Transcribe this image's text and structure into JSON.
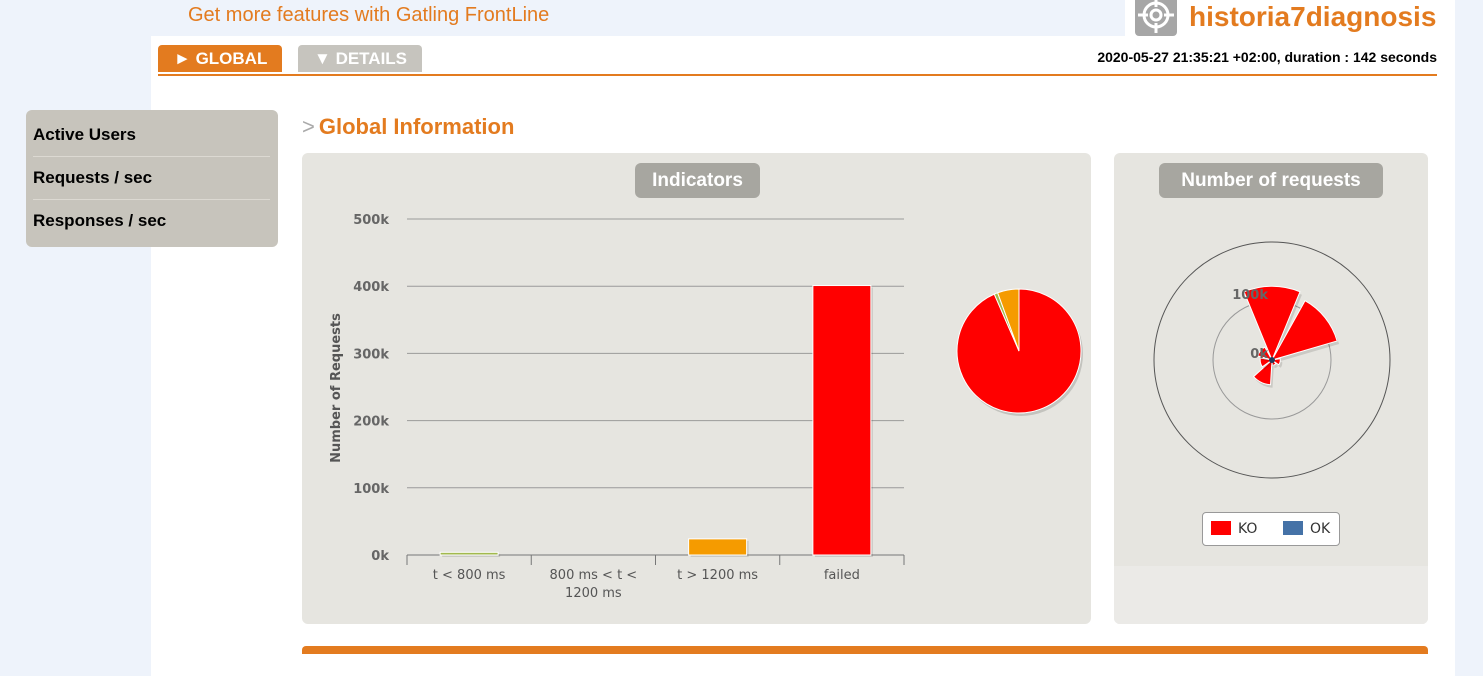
{
  "promo": {
    "text": "Get more features with Gatling FrontLine"
  },
  "brand": {
    "name": "historia7diagnosis",
    "icon": "target-icon"
  },
  "tabs": [
    {
      "label": "GLOBAL",
      "icon": "caret-right-icon",
      "active": true
    },
    {
      "label": "DETAILS",
      "icon": "caret-down-icon",
      "active": false
    }
  ],
  "run_info": "2020-05-27 21:35:21 +02:00, duration : 142 seconds",
  "menu": [
    {
      "label": "Active Users"
    },
    {
      "label": "Requests / sec"
    },
    {
      "label": "Responses / sec"
    }
  ],
  "section": {
    "prefix": ">",
    "title": "Global Information"
  },
  "colors": {
    "accent": "#e37b1f",
    "ok_green": "#a2b94e",
    "warn_orange": "#f59b00",
    "ko_red": "#ff0000",
    "ok_blue": "#4572a7"
  },
  "chart_data": [
    {
      "type": "bar",
      "title": "Indicators",
      "ylabel": "Number of Requests",
      "categories": [
        "t < 800 ms",
        "800 ms < t < 1200 ms",
        "t > 1200 ms",
        "failed"
      ],
      "values": [
        4000,
        0,
        24000,
        401000
      ],
      "bar_colors": [
        "#a2b94e",
        "#f2b600",
        "#f59b00",
        "#ff0000"
      ],
      "ylim": [
        0,
        500000
      ],
      "yticks": [
        "0k",
        "100k",
        "200k",
        "300k",
        "400k",
        "500k"
      ],
      "grid": true
    },
    {
      "type": "pie",
      "slices": [
        {
          "label": "failed",
          "value": 401000,
          "color": "#ff0000"
        },
        {
          "label": "t < 800 ms",
          "value": 4000,
          "color": "#a2b94e"
        },
        {
          "label": "t > 1200 ms",
          "value": 24000,
          "color": "#f59b00"
        }
      ]
    },
    {
      "type": "polar",
      "title": "Number of requests",
      "radial_ticks": [
        "0k",
        "100k"
      ],
      "wedges": [
        {
          "value": 125000,
          "color": "#ff0000"
        },
        {
          "value": 115000,
          "color": "#ff0000"
        },
        {
          "value": 14000,
          "color": "#ff0000"
        },
        {
          "value": 9000,
          "color": "#ff0000"
        },
        {
          "value": 42000,
          "color": "#ff0000"
        },
        {
          "value": 20000,
          "color": "#ff0000"
        },
        {
          "value": 25000,
          "color": "#ff0000"
        }
      ],
      "legend": [
        {
          "label": "KO",
          "color": "#ff0000"
        },
        {
          "label": "OK",
          "color": "#4572a7"
        }
      ]
    }
  ]
}
